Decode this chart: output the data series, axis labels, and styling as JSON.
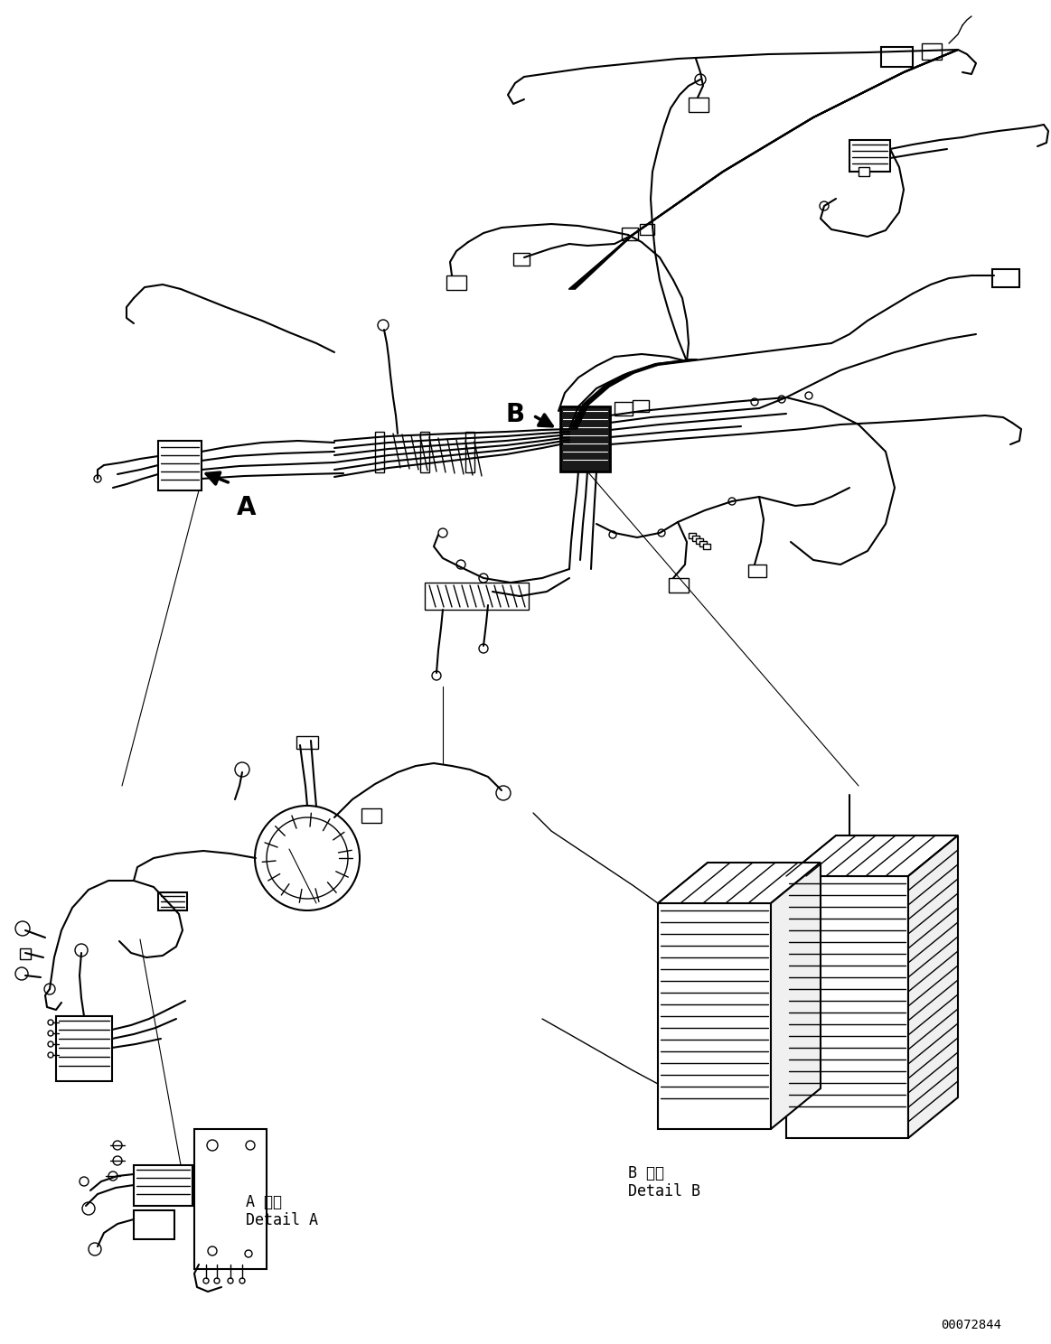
{
  "bg_color": "#ffffff",
  "line_color": "#000000",
  "figure_width": 11.63,
  "figure_height": 14.88,
  "dpi": 100,
  "part_number": "00072844",
  "label_A": "A",
  "label_B": "B",
  "detail_A_japanese": "A 詳細",
  "detail_A_english": "Detail A",
  "detail_B_japanese": "B 詳細",
  "detail_B_english": "Detail B",
  "font_size_label": 20,
  "font_size_detail": 12,
  "font_size_partnumber": 10
}
